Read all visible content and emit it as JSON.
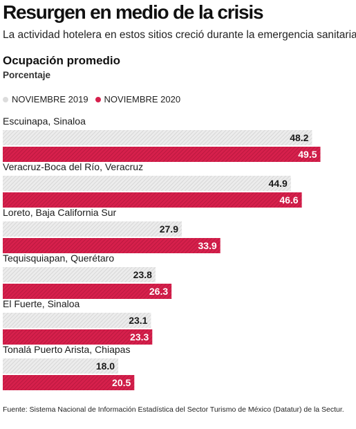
{
  "header": {
    "title": "Resurgen en medio de la crisis",
    "subtitle": "La actividad hotelera en estos sitios creció durante la emergencia sanitaria."
  },
  "chart_data": {
    "type": "bar",
    "orientation": "horizontal",
    "title": "Ocupación promedio",
    "unit_label": "Porcentaje",
    "legend_position": "top-left",
    "grid": false,
    "categories": [
      "Escuinapa, Sinaloa",
      "Veracruz-Boca del Río, Veracruz",
      "Loreto, Baja California Sur",
      "Tequisquiapan, Querétaro",
      "El Fuerte, Sinaloa",
      "Tonalá Puerto Arista, Chiapas"
    ],
    "series": [
      {
        "name": "NOVIEMBRE 2019",
        "color": "#e3e3e3",
        "values": [
          48.2,
          44.9,
          27.9,
          23.8,
          23.1,
          18.0
        ],
        "value_labels": [
          "48.2",
          "44.9",
          "27.9",
          "23.8",
          "23.1",
          "18.0"
        ]
      },
      {
        "name": "NOVIEMBRE 2020",
        "color": "#d6204c",
        "values": [
          49.5,
          46.6,
          33.9,
          26.3,
          23.3,
          20.5
        ],
        "value_labels": [
          "49.5",
          "46.6",
          "33.9",
          "26.3",
          "23.3",
          "20.5"
        ]
      }
    ],
    "xlim": [
      0,
      53
    ]
  },
  "footer": {
    "source": "Fuente: Sistema Nacional de Información Estadística del Sector Turismo de México (Datatur) de la Sectur."
  }
}
